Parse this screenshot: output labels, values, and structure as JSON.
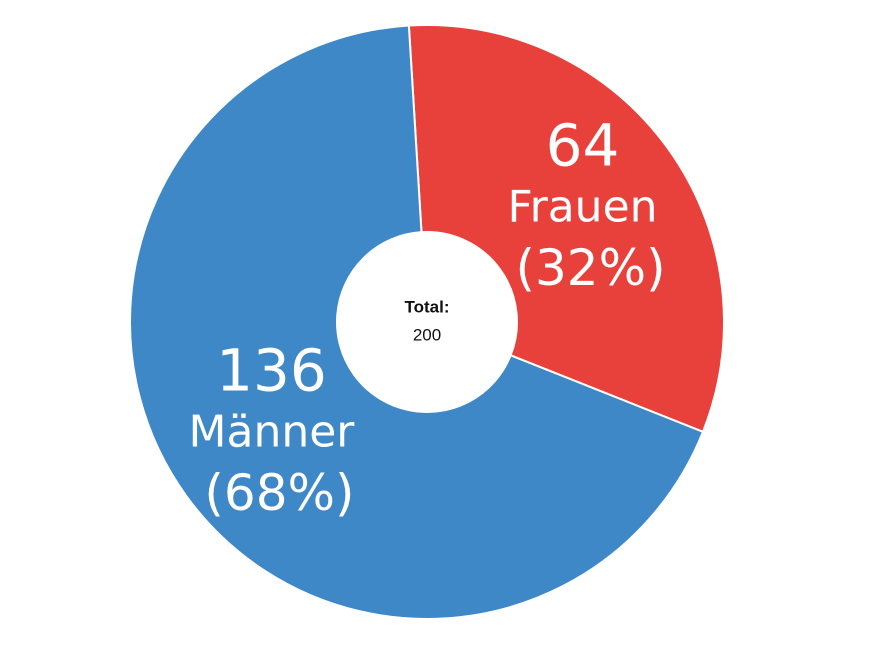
{
  "chart_data": {
    "type": "donut",
    "categories": [
      "Männer",
      "Frauen"
    ],
    "values": [
      136,
      64
    ],
    "percentages": [
      68,
      32
    ],
    "percentage_labels": [
      "(68%)",
      "(32%)"
    ],
    "colors": [
      "#3f88c8",
      "#e8413c"
    ],
    "total_label": "Total:",
    "total": 200
  }
}
